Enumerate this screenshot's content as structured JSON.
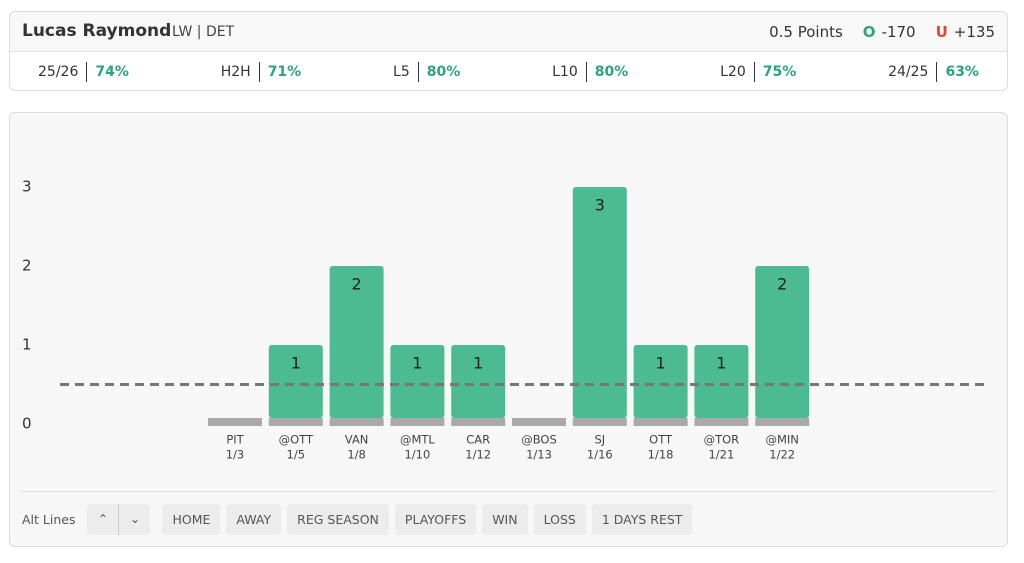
{
  "header": {
    "player": "Lucas Raymond",
    "position": "LW | DET",
    "prop": "0.5 Points",
    "over_label": "O",
    "over": "-170",
    "under_label": "U",
    "under": "+135"
  },
  "stats": [
    {
      "label": "25/26",
      "value": "74%"
    },
    {
      "label": "H2H",
      "value": "71%"
    },
    {
      "label": "L5",
      "value": "80%"
    },
    {
      "label": "L10",
      "value": "80%"
    },
    {
      "label": "L20",
      "value": "75%"
    },
    {
      "label": "24/25",
      "value": "63%"
    }
  ],
  "chart": {
    "type": "bar",
    "categories": [
      {
        "opponent": "PIT",
        "date": "1/3"
      },
      {
        "opponent": "@OTT",
        "date": "1/5"
      },
      {
        "opponent": "VAN",
        "date": "1/8"
      },
      {
        "opponent": "@MTL",
        "date": "1/10"
      },
      {
        "opponent": "CAR",
        "date": "1/12"
      },
      {
        "opponent": "@BOS",
        "date": "1/13"
      },
      {
        "opponent": "SJ",
        "date": "1/16"
      },
      {
        "opponent": "OTT",
        "date": "1/18"
      },
      {
        "opponent": "@TOR",
        "date": "1/21"
      },
      {
        "opponent": "@MIN",
        "date": "1/22"
      }
    ],
    "values": [
      0,
      1,
      2,
      1,
      1,
      0,
      3,
      1,
      1,
      2
    ],
    "ylim": [
      0,
      3.5
    ],
    "yticks": [
      0,
      1,
      2,
      3
    ],
    "line": 0.5,
    "color": "#4cbb94",
    "base_color": "#a9a9a9"
  },
  "controls": {
    "alt_lines": "Alt Lines",
    "filters": [
      "HOME",
      "AWAY",
      "REG SEASON",
      "PLAYOFFS",
      "WIN",
      "LOSS",
      "1 DAYS REST"
    ]
  }
}
